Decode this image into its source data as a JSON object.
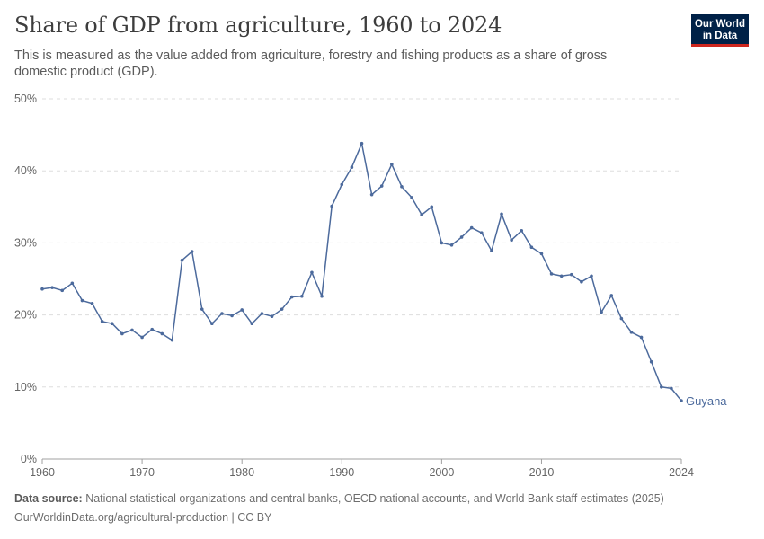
{
  "header": {
    "title": "Share of GDP from agriculture, 1960 to 2024",
    "subtitle": "This is measured as the value added from agriculture, forestry and fishing products as a share of gross domestic product (GDP).",
    "logo_line1": "Our World",
    "logo_line2": "in Data"
  },
  "footer": {
    "source_label": "Data source:",
    "source_text": " National statistical organizations and central banks, OECD national accounts, and World Bank staff estimates (2025)",
    "url_license": "OurWorldinData.org/agricultural-production | CC BY"
  },
  "colors": {
    "series": "#4c6a9c",
    "grid": "#dddddd",
    "brand": "#002147",
    "brand_accent": "#ce261e"
  },
  "chart_data": {
    "type": "line",
    "title": "Share of GDP from agriculture, 1960 to 2024",
    "xlabel": "",
    "ylabel": "",
    "xlim": [
      1960,
      2024
    ],
    "ylim": [
      0,
      50
    ],
    "x_ticks": [
      1960,
      1970,
      1980,
      1990,
      2000,
      2010,
      2024
    ],
    "y_ticks": [
      0,
      10,
      20,
      30,
      40,
      50
    ],
    "y_tick_labels": [
      "0%",
      "10%",
      "20%",
      "30%",
      "40%",
      "50%"
    ],
    "grid": true,
    "series": [
      {
        "name": "Guyana",
        "x": [
          1960,
          1961,
          1962,
          1963,
          1964,
          1965,
          1966,
          1967,
          1968,
          1969,
          1970,
          1971,
          1972,
          1973,
          1974,
          1975,
          1976,
          1977,
          1978,
          1979,
          1980,
          1981,
          1982,
          1983,
          1984,
          1985,
          1986,
          1987,
          1988,
          1989,
          1990,
          1991,
          1992,
          1993,
          1994,
          1995,
          1996,
          1997,
          1998,
          1999,
          2000,
          2001,
          2002,
          2003,
          2004,
          2005,
          2006,
          2007,
          2008,
          2009,
          2010,
          2011,
          2012,
          2013,
          2014,
          2015,
          2016,
          2017,
          2018,
          2019,
          2020,
          2021,
          2022,
          2023,
          2024
        ],
        "values": [
          23.6,
          23.8,
          23.4,
          24.4,
          22.0,
          21.6,
          19.1,
          18.8,
          17.4,
          17.9,
          16.9,
          18.0,
          17.4,
          16.5,
          27.6,
          28.8,
          20.8,
          18.8,
          20.2,
          19.9,
          20.7,
          18.8,
          20.2,
          19.8,
          20.8,
          22.5,
          22.6,
          25.9,
          22.6,
          35.1,
          38.1,
          40.5,
          43.8,
          36.7,
          37.9,
          40.9,
          37.8,
          36.3,
          33.9,
          35.0,
          30.0,
          29.7,
          30.8,
          32.1,
          31.4,
          28.9,
          34.0,
          30.4,
          31.7,
          29.4,
          28.5,
          25.7,
          25.4,
          25.6,
          24.6,
          25.4,
          20.4,
          22.7,
          19.5,
          17.6,
          16.9,
          13.5,
          10.0,
          9.8,
          8.1
        ]
      }
    ]
  }
}
